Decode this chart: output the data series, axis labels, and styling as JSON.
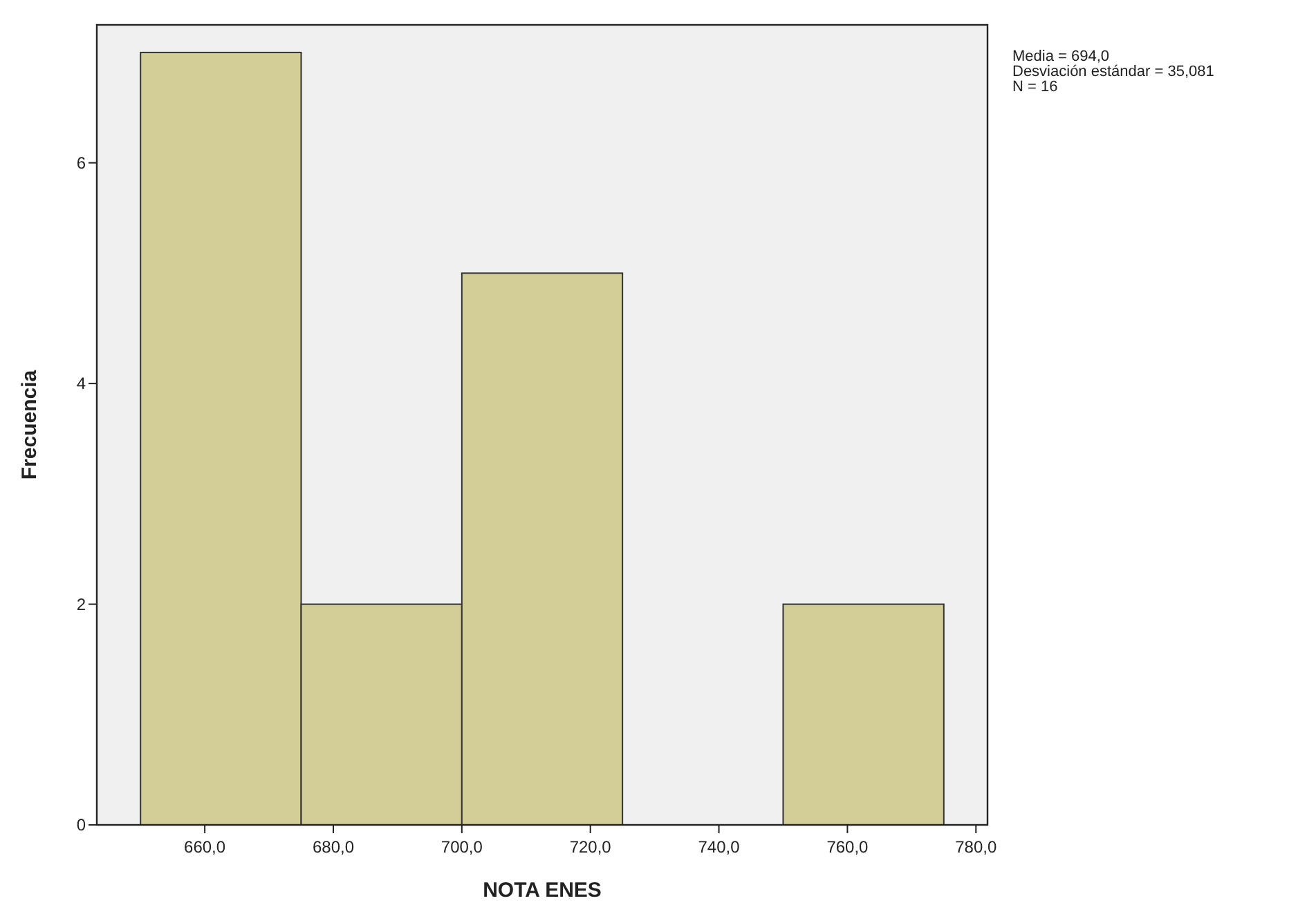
{
  "chart_data": {
    "type": "histogram",
    "xlabel": "NOTA ENES",
    "ylabel": "Frecuencia",
    "bins": [
      650,
      675,
      700,
      725,
      750,
      775
    ],
    "values": [
      7,
      2,
      5,
      0,
      2
    ],
    "color": "#d3ce97",
    "xlim": [
      643.2,
      781.8
    ],
    "ylim": [
      0,
      7.25
    ],
    "xticks": [
      {
        "value": 660,
        "label": "660,0"
      },
      {
        "value": 680,
        "label": "680,0"
      },
      {
        "value": 700,
        "label": "700,0"
      },
      {
        "value": 720,
        "label": "720,0"
      },
      {
        "value": 740,
        "label": "740,0"
      },
      {
        "value": 760,
        "label": "760,0"
      },
      {
        "value": 780,
        "label": "780,0"
      }
    ],
    "yticks": [
      0,
      2,
      4,
      6
    ],
    "grid": false,
    "annotations": [
      "Media = 694,0",
      "Desviación estándar = 35,081",
      "N = 16"
    ]
  }
}
